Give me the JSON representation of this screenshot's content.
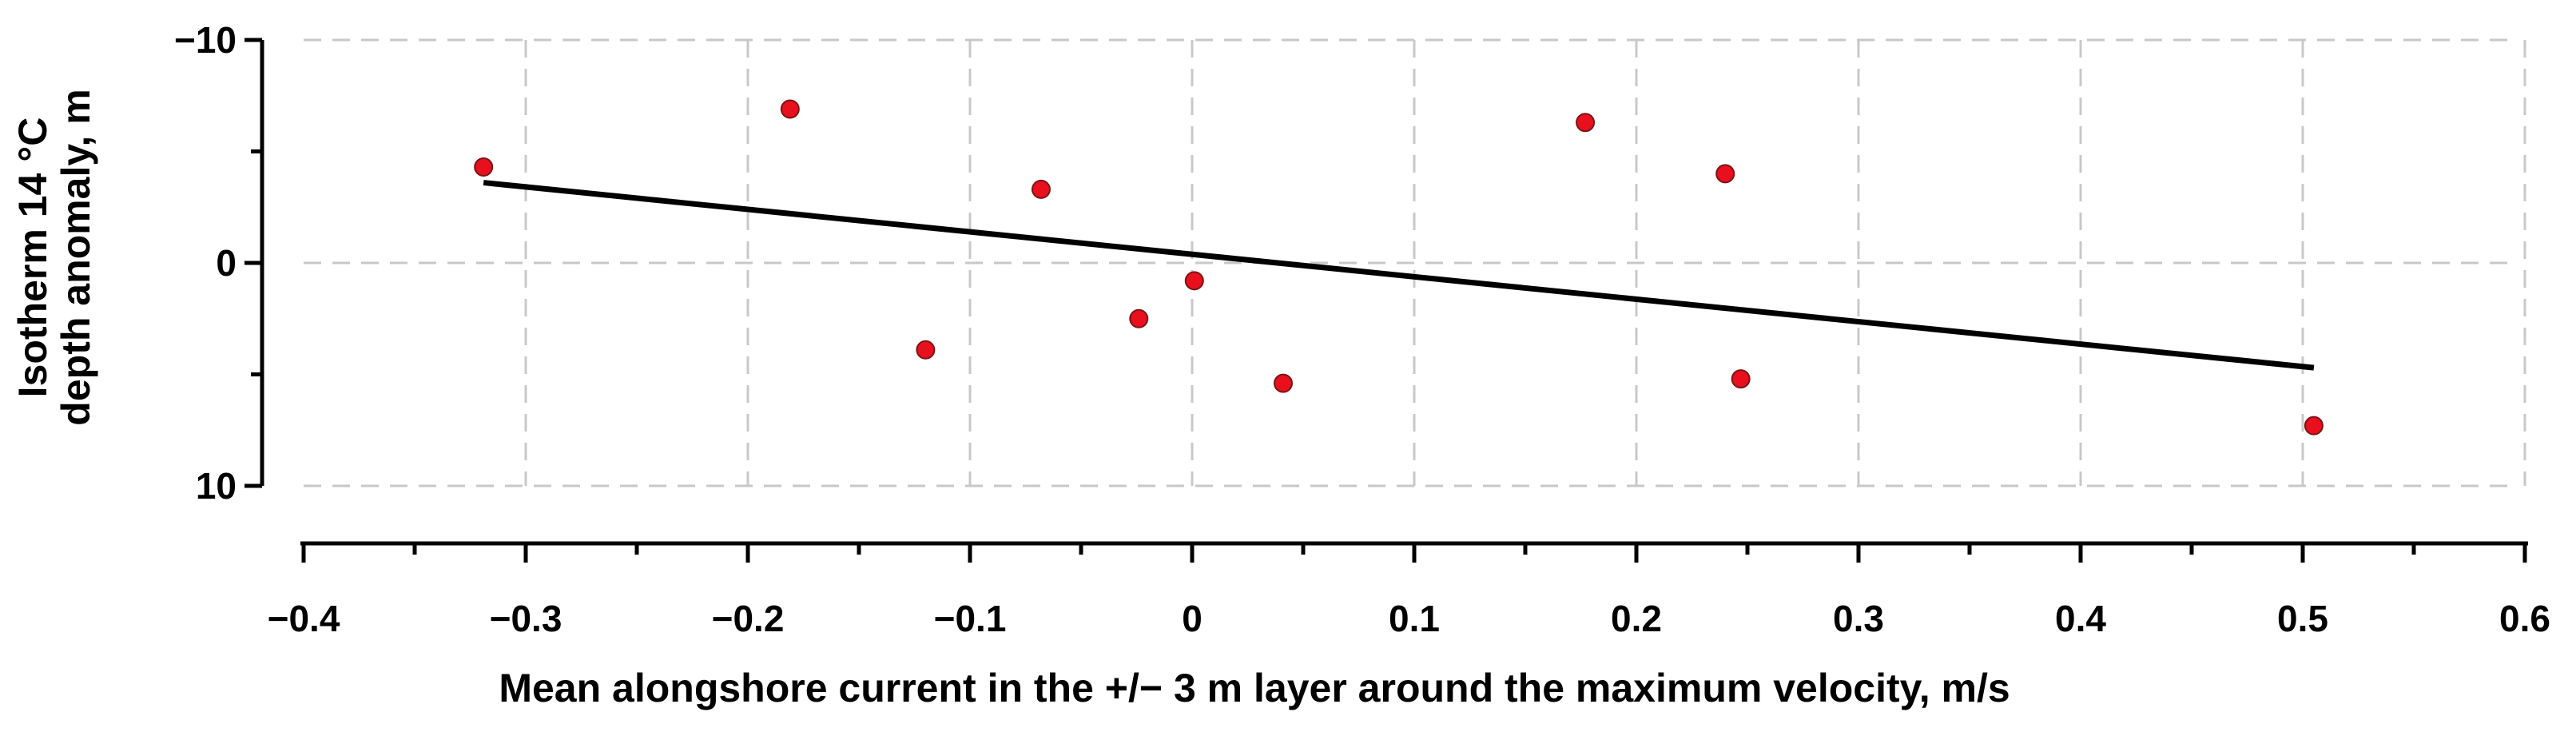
{
  "chart_data": {
    "type": "scatter",
    "title": "",
    "xlabel": "Mean alongshore current in the +/− 3 m layer around the maximum velocity, m/s",
    "ylabel_line1": "Isotherm 14 °C",
    "ylabel_line2": "depth anomaly, m",
    "xlim": [
      -0.4,
      0.6
    ],
    "ylim": [
      -10,
      10
    ],
    "y_inverted": true,
    "grid": true,
    "x_ticks": [
      -0.4,
      -0.3,
      -0.2,
      -0.1,
      0,
      0.1,
      0.2,
      0.3,
      0.4,
      0.5,
      0.6
    ],
    "x_tick_labels": [
      "−0.4",
      "−0.3",
      "−0.2",
      "−0.1",
      "0",
      "0.1",
      "0.2",
      "0.3",
      "0.4",
      "0.5",
      "0.6"
    ],
    "y_ticks": [
      -10,
      0,
      10
    ],
    "y_tick_labels": [
      "−10",
      "0",
      "10"
    ],
    "point_color": "#e8101c",
    "line_color": "#000000",
    "points": [
      {
        "x": -0.319,
        "y": -4.3
      },
      {
        "x": -0.181,
        "y": -6.9
      },
      {
        "x": -0.12,
        "y": 3.9
      },
      {
        "x": -0.068,
        "y": -3.3
      },
      {
        "x": -0.024,
        "y": 2.5
      },
      {
        "x": 0.001,
        "y": 0.8
      },
      {
        "x": 0.041,
        "y": 5.4
      },
      {
        "x": 0.177,
        "y": -6.3
      },
      {
        "x": 0.24,
        "y": -4.0
      },
      {
        "x": 0.247,
        "y": 5.2
      },
      {
        "x": 0.505,
        "y": 7.3
      }
    ],
    "trendline": {
      "x": [
        -0.319,
        0.505
      ],
      "y": [
        -3.6,
        4.7
      ]
    }
  }
}
